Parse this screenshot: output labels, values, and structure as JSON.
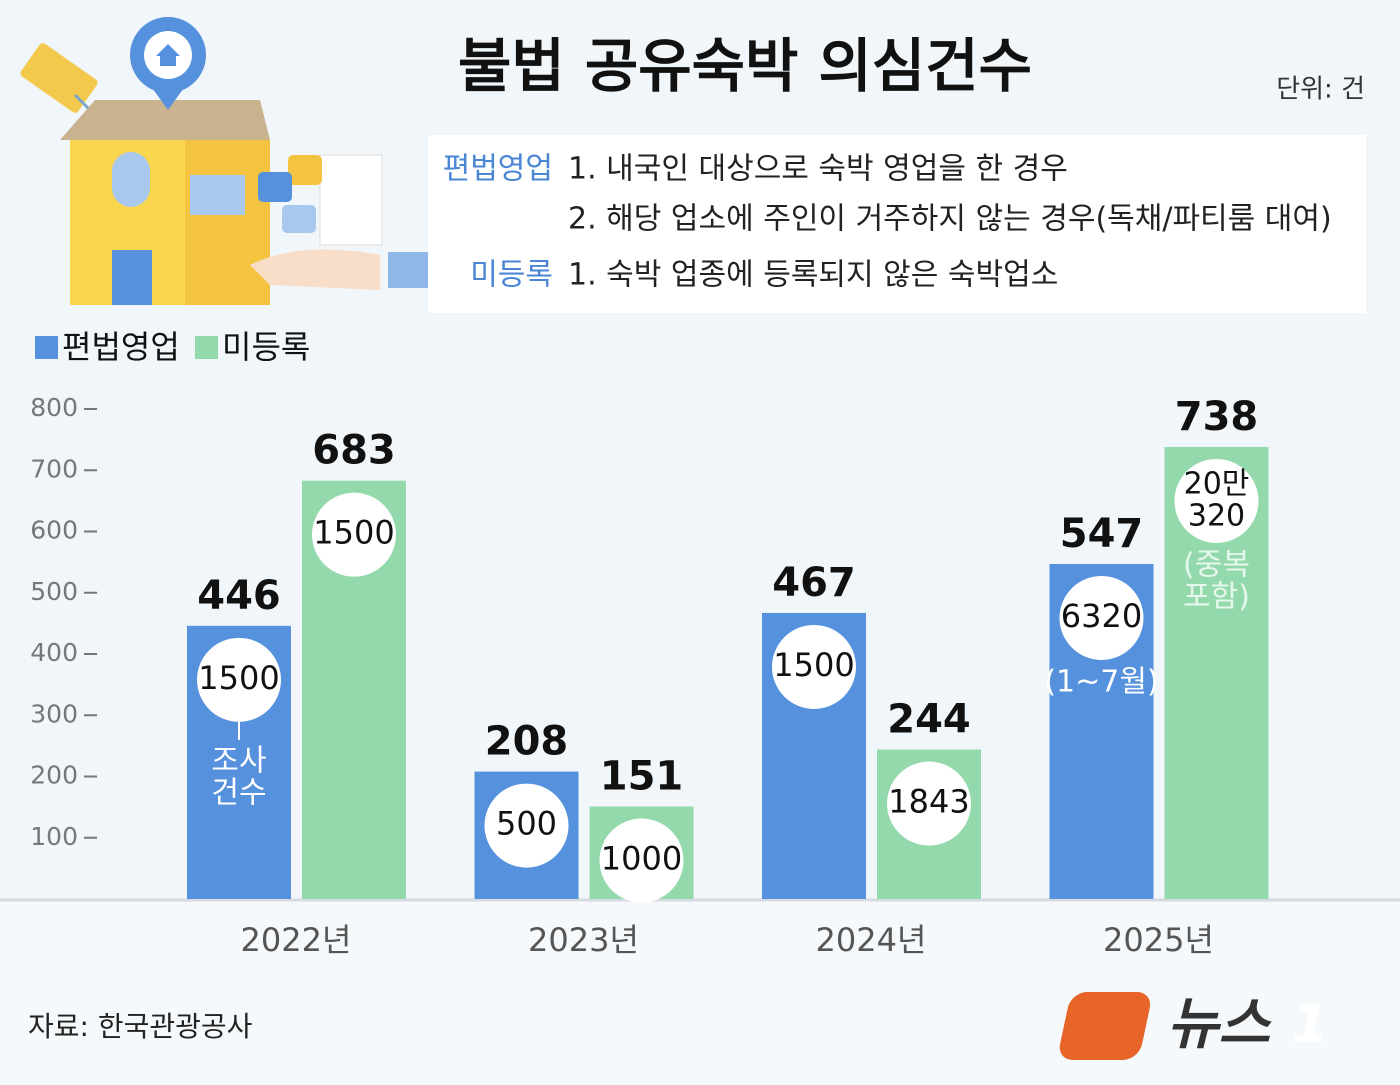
{
  "title": "불법 공유숙박 의심건수",
  "unit": "단위: 건",
  "definitions": [
    {
      "term": "편법영업",
      "items": [
        "1. 내국인 대상으로 숙박 영업을 한 경우",
        "2. 해당 업소에 주인이 거주하지 않는 경우(독채/파티룸 대여)"
      ]
    },
    {
      "term": "미등록",
      "items": [
        "1. 숙박 업종에 등록되지 않은 숙박업소"
      ]
    }
  ],
  "chart_data": {
    "type": "bar",
    "categories": [
      "2022년",
      "2023년",
      "2024년",
      "2025년"
    ],
    "series": [
      {
        "name": "편법영업",
        "color": "#5591dc",
        "values": [
          446,
          208,
          467,
          547
        ],
        "circle_labels": [
          [
            "1500"
          ],
          [
            "500"
          ],
          [
            "1500"
          ],
          [
            "6320"
          ]
        ],
        "notes": [
          [
            "조사",
            "건수"
          ],
          null,
          null,
          [
            "(1~7월)"
          ]
        ]
      },
      {
        "name": "미등록",
        "color": "#93d9ab",
        "values": [
          683,
          151,
          244,
          738
        ],
        "circle_labels": [
          [
            "1500"
          ],
          [
            "1000"
          ],
          [
            "1843"
          ],
          [
            "20만",
            "320"
          ]
        ],
        "notes": [
          null,
          null,
          null,
          [
            "(중복",
            "포함)"
          ]
        ]
      }
    ],
    "ylim": [
      0,
      800
    ],
    "yticks": [
      100,
      200,
      300,
      400,
      500,
      600,
      700,
      800
    ]
  },
  "source": "자료: 한국관광공사",
  "logo": {
    "text": "뉴스",
    "number": "1"
  }
}
